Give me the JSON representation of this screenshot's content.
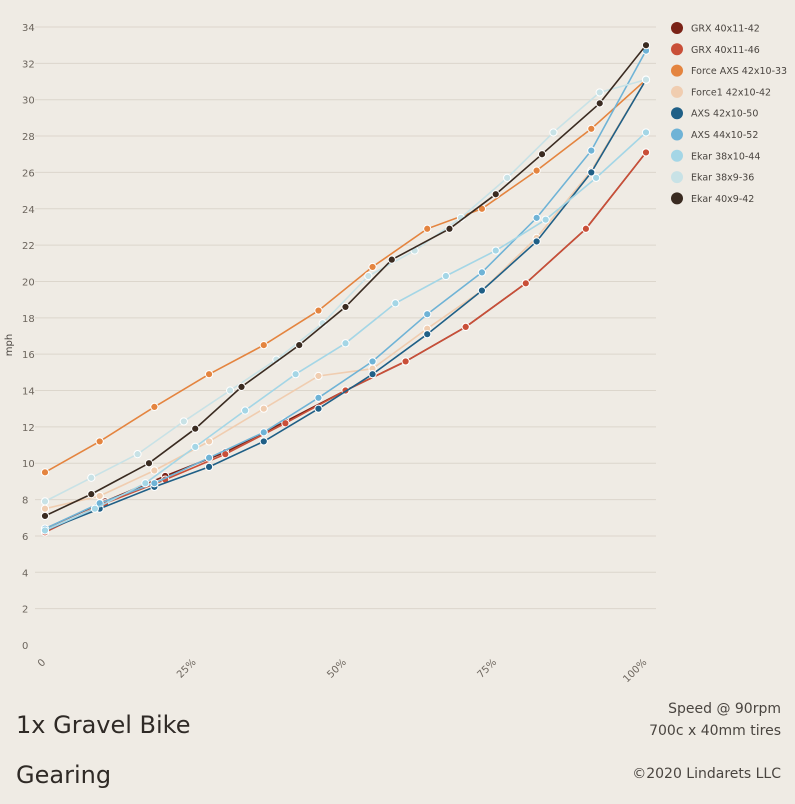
{
  "chart_data": {
    "type": "line",
    "title": "1x Gravel Bike Gearing",
    "title_lines": [
      "1x Gravel Bike",
      "Gearing"
    ],
    "subtitle_lines": [
      "Speed @ 90rpm",
      "700c x 40mm tires"
    ],
    "copyright": "©2020 Lindarets LLC",
    "ylabel": "mph",
    "xlabel": "",
    "xlim": [
      0,
      100
    ],
    "ylim": [
      0,
      34
    ],
    "y_ticks": [
      0,
      2,
      4,
      6,
      8,
      10,
      12,
      14,
      16,
      18,
      20,
      22,
      24,
      26,
      28,
      30,
      32,
      34
    ],
    "x_ticks": [
      {
        "value": 0,
        "label": "0"
      },
      {
        "value": 25,
        "label": "25%"
      },
      {
        "value": 50,
        "label": "50%"
      },
      {
        "value": 75,
        "label": "75%"
      },
      {
        "value": 100,
        "label": "100%"
      }
    ],
    "grid": "horizontal",
    "legend_position": "top-right",
    "series": [
      {
        "name": "GRX 40x11-42",
        "color": "#7a2216",
        "x": [
          0,
          10,
          20,
          30,
          40,
          50,
          60,
          70,
          80,
          90,
          100
        ],
        "y": [
          6.4,
          7.9,
          9.3,
          10.6,
          12.3,
          14.0,
          15.6,
          17.5,
          19.9,
          22.9,
          27.1
        ]
      },
      {
        "name": "GRX 40x11-46",
        "color": "#c94f38",
        "x": [
          0,
          10,
          20,
          30,
          40,
          50,
          60,
          70,
          80,
          90,
          100
        ],
        "y": [
          6.2,
          7.8,
          9.1,
          10.5,
          12.2,
          14.0,
          15.6,
          17.5,
          19.9,
          22.9,
          27.1
        ]
      },
      {
        "name": "Force AXS 42x10-33",
        "color": "#e4843f",
        "x": [
          0,
          9.1,
          18.2,
          27.3,
          36.4,
          45.5,
          54.5,
          63.6,
          72.7,
          81.8,
          90.9,
          100
        ],
        "y": [
          9.5,
          11.2,
          13.1,
          14.9,
          16.5,
          18.4,
          20.8,
          22.9,
          24.0,
          26.1,
          28.4,
          31.1
        ]
      },
      {
        "name": "Force1 42x10-42",
        "color": "#f0cdb0",
        "x": [
          0,
          9.1,
          18.2,
          27.3,
          36.4,
          45.5,
          54.5,
          63.6,
          72.7,
          81.8,
          90.9,
          100
        ],
        "y": [
          7.5,
          8.2,
          9.6,
          11.2,
          13.0,
          14.8,
          15.2,
          17.4,
          19.5,
          22.4,
          26.1,
          31.1
        ]
      },
      {
        "name": "AXS 42x10-50",
        "color": "#1f5f86",
        "x": [
          0,
          9.1,
          18.2,
          27.3,
          36.4,
          45.5,
          54.5,
          63.6,
          72.7,
          81.8,
          90.9,
          100
        ],
        "y": [
          6.3,
          7.5,
          8.7,
          9.8,
          11.2,
          13.0,
          14.9,
          17.1,
          19.5,
          22.2,
          26.0,
          31.1
        ]
      },
      {
        "name": "AXS 44x10-52",
        "color": "#6fb3d6",
        "x": [
          0,
          9.1,
          18.2,
          27.3,
          36.4,
          45.5,
          54.5,
          63.6,
          72.7,
          81.8,
          90.9,
          100
        ],
        "y": [
          6.4,
          7.8,
          8.9,
          10.3,
          11.7,
          13.6,
          15.6,
          18.2,
          20.5,
          23.5,
          27.2,
          32.7
        ]
      },
      {
        "name": "Ekar 38x10-44",
        "color": "#a4d6e6",
        "x": [
          0,
          8.3,
          16.7,
          25,
          33.3,
          41.7,
          50,
          58.3,
          66.7,
          75,
          83.3,
          91.7,
          100
        ],
        "y": [
          6.3,
          7.5,
          8.9,
          10.9,
          12.9,
          14.9,
          16.6,
          18.8,
          20.3,
          21.7,
          23.4,
          25.7,
          28.2
        ]
      },
      {
        "name": "Ekar 38x9-36",
        "color": "#c8e2e6",
        "x": [
          0,
          7.7,
          15.4,
          23.1,
          30.8,
          38.5,
          46.2,
          53.8,
          61.5,
          69.2,
          76.9,
          84.6,
          92.3,
          100
        ],
        "y": [
          7.9,
          9.2,
          10.5,
          12.3,
          14.0,
          15.7,
          17.7,
          20.3,
          21.7,
          23.5,
          25.7,
          28.2,
          30.4,
          31.1
        ]
      },
      {
        "name": "Ekar 40x9-42",
        "color": "#3a2b21",
        "x": [
          0,
          7.7,
          17.3,
          25,
          32.7,
          42.3,
          50,
          57.7,
          67.3,
          75,
          82.7,
          92.3,
          100
        ],
        "y": [
          7.1,
          8.3,
          10.0,
          11.9,
          14.2,
          16.5,
          18.6,
          21.2,
          22.9,
          24.8,
          27.0,
          29.8,
          33.0
        ]
      }
    ]
  }
}
